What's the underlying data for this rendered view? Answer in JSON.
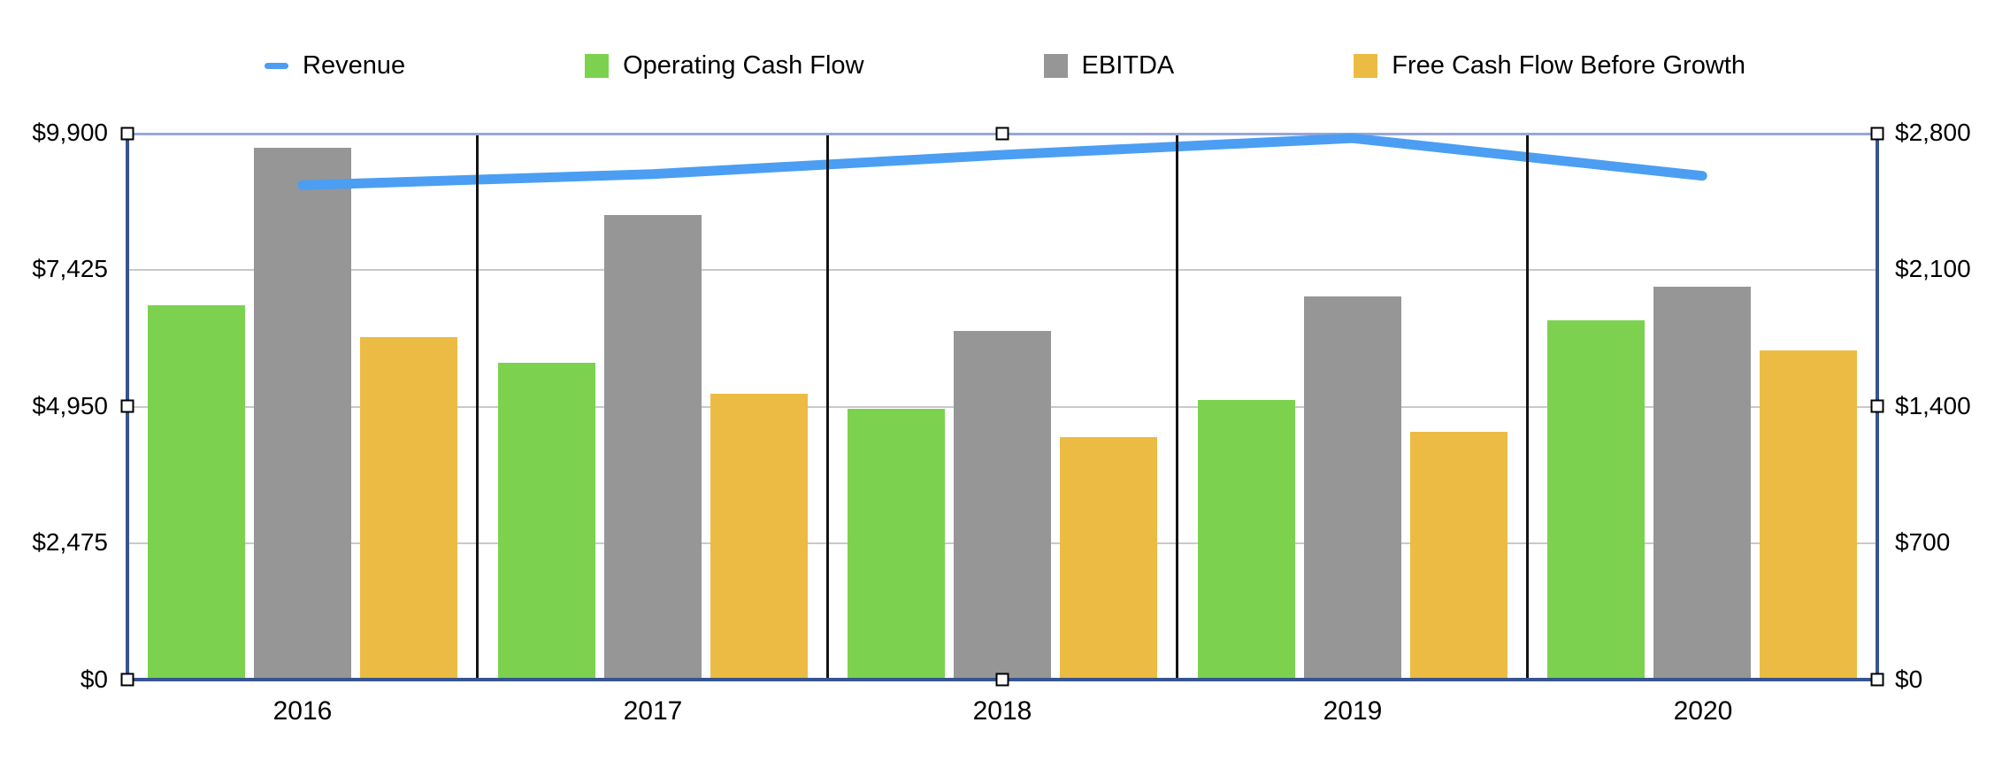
{
  "chart_data": {
    "type": "combo (grouped bars + line, dual value axes)",
    "categories": [
      "2016",
      "2017",
      "2018",
      "2019",
      "2020"
    ],
    "series": [
      {
        "name": "Revenue",
        "type": "line",
        "axis": "left",
        "color": "#4B9EF2",
        "values_left_axis": [
          8950,
          9150,
          9500,
          9800,
          9120
        ],
        "values_right_axis": [
          2530,
          2590,
          2685,
          2770,
          2580
        ]
      },
      {
        "name": "Operating Cash Flow",
        "type": "bar",
        "axis": "right",
        "color": "#7CD24E",
        "values_left_axis": [
          6750,
          5700,
          4875,
          5025,
          6475
        ],
        "values_right_axis": [
          1910,
          1610,
          1380,
          1420,
          1830
        ]
      },
      {
        "name": "EBITDA",
        "type": "bar",
        "axis": "right",
        "color": "#969696",
        "values_left_axis": [
          9600,
          8375,
          6275,
          6900,
          7075
        ],
        "values_right_axis": [
          2715,
          2370,
          1775,
          1950,
          2000
        ]
      },
      {
        "name": "Free Cash Flow Before Growth",
        "type": "bar",
        "axis": "right",
        "color": "#ECBB43",
        "values_left_axis": [
          6175,
          5150,
          4350,
          4450,
          5925
        ],
        "values_right_axis": [
          1745,
          1455,
          1230,
          1260,
          1675
        ]
      }
    ],
    "left_axis": {
      "min": 0,
      "max": 9900,
      "tick_labels": [
        "$9,900",
        "$7,425",
        "$4,950",
        "$2,475",
        "$0"
      ]
    },
    "right_axis": {
      "min": 0,
      "max": 2800,
      "tick_labels": [
        "$2,800",
        "$2,100",
        "$1,400",
        "$700",
        "$0"
      ]
    },
    "legend_position": "top",
    "grid": "3 light horizontal gridlines, light-blue top rule, black vertical separators between year groups"
  },
  "style": {
    "frame_color": "#36548F",
    "top_rule_color": "#98A6DB",
    "gridline_color": "#C9C9CD",
    "separator_color": "#141414",
    "selection_handle_fill": "#FFFFFF",
    "selection_handle_border": "#000000",
    "background": "#FFFFFF"
  }
}
